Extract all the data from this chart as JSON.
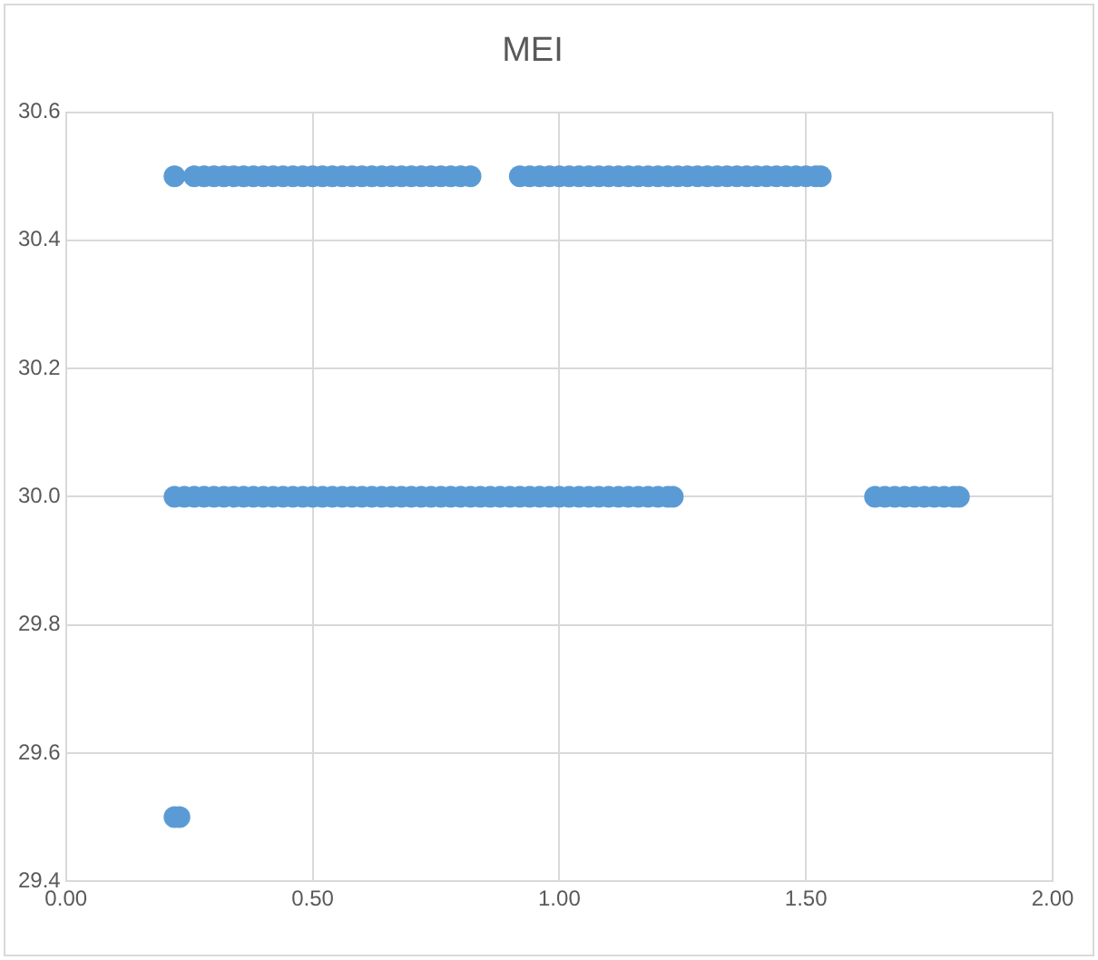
{
  "chart_data": {
    "type": "scatter",
    "title": "MEI",
    "marker": "circle",
    "grid": true,
    "legend": false,
    "xlim": [
      0,
      2
    ],
    "xticks": [
      {
        "value": 0,
        "label": "0.00"
      },
      {
        "value": 0.5,
        "label": "0.50"
      },
      {
        "value": 1,
        "label": "1.00"
      },
      {
        "value": 1.5,
        "label": "1.50"
      },
      {
        "value": 2,
        "label": "2.00"
      }
    ],
    "ylim": [
      29.4,
      30.6
    ],
    "yticks": [
      29.4,
      29.6,
      29.8,
      {
        "value": 30,
        "label": "30.0"
      },
      30.2,
      30.4,
      30.6
    ],
    "series": [
      {
        "color": "#5b9bd5",
        "x": [
          0.22,
          0.26,
          0.28,
          0.3,
          0.32,
          0.34,
          0.36,
          0.38,
          0.4,
          0.42,
          0.44,
          0.46,
          0.48,
          0.5,
          0.52,
          0.54,
          0.56,
          0.58,
          0.6,
          0.62,
          0.64,
          0.66,
          0.68,
          0.7,
          0.72,
          0.74,
          0.76,
          0.78,
          0.8,
          0.82,
          0.92,
          0.94,
          0.96,
          0.98,
          1.0,
          1.02,
          1.04,
          1.06,
          1.08,
          1.1,
          1.12,
          1.14,
          1.16,
          1.18,
          1.2,
          1.22,
          1.24,
          1.26,
          1.28,
          1.3,
          1.32,
          1.34,
          1.36,
          1.38,
          1.4,
          1.42,
          1.44,
          1.46,
          1.48,
          1.5,
          1.52,
          1.53,
          0.22,
          0.24,
          0.26,
          0.28,
          0.3,
          0.32,
          0.34,
          0.36,
          0.38,
          0.4,
          0.42,
          0.44,
          0.46,
          0.48,
          0.5,
          0.52,
          0.54,
          0.56,
          0.58,
          0.6,
          0.62,
          0.64,
          0.66,
          0.68,
          0.7,
          0.72,
          0.74,
          0.76,
          0.78,
          0.8,
          0.82,
          0.84,
          0.86,
          0.88,
          0.9,
          0.92,
          0.94,
          0.96,
          0.98,
          1.0,
          1.02,
          1.04,
          1.06,
          1.08,
          1.1,
          1.12,
          1.14,
          1.16,
          1.18,
          1.2,
          1.22,
          1.23,
          1.64,
          1.66,
          1.68,
          1.7,
          1.72,
          1.74,
          1.76,
          1.78,
          1.8,
          1.81,
          0.22,
          0.23
        ],
        "values": [
          30.5,
          30.5,
          30.5,
          30.5,
          30.5,
          30.5,
          30.5,
          30.5,
          30.5,
          30.5,
          30.5,
          30.5,
          30.5,
          30.5,
          30.5,
          30.5,
          30.5,
          30.5,
          30.5,
          30.5,
          30.5,
          30.5,
          30.5,
          30.5,
          30.5,
          30.5,
          30.5,
          30.5,
          30.5,
          30.5,
          30.5,
          30.5,
          30.5,
          30.5,
          30.5,
          30.5,
          30.5,
          30.5,
          30.5,
          30.5,
          30.5,
          30.5,
          30.5,
          30.5,
          30.5,
          30.5,
          30.5,
          30.5,
          30.5,
          30.5,
          30.5,
          30.5,
          30.5,
          30.5,
          30.5,
          30.5,
          30.5,
          30.5,
          30.5,
          30.5,
          30.5,
          30.5,
          30.0,
          30.0,
          30.0,
          30.0,
          30.0,
          30.0,
          30.0,
          30.0,
          30.0,
          30.0,
          30.0,
          30.0,
          30.0,
          30.0,
          30.0,
          30.0,
          30.0,
          30.0,
          30.0,
          30.0,
          30.0,
          30.0,
          30.0,
          30.0,
          30.0,
          30.0,
          30.0,
          30.0,
          30.0,
          30.0,
          30.0,
          30.0,
          30.0,
          30.0,
          30.0,
          30.0,
          30.0,
          30.0,
          30.0,
          30.0,
          30.0,
          30.0,
          30.0,
          30.0,
          30.0,
          30.0,
          30.0,
          30.0,
          30.0,
          30.0,
          30.0,
          30.0,
          30.0,
          30.0,
          30.0,
          30.0,
          30.0,
          30.0,
          30.0,
          30.0,
          30.0,
          30.0,
          29.5,
          29.5
        ]
      }
    ]
  }
}
